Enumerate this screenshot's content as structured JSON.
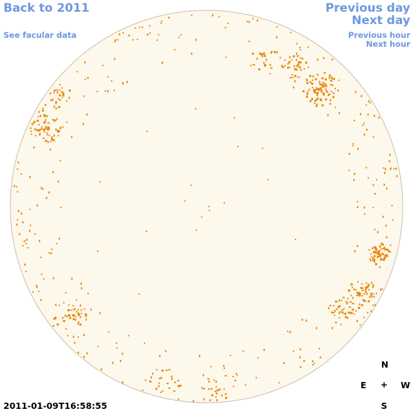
{
  "nav": {
    "back": "Back to 2011",
    "facular": "See facular data",
    "previous_day": "Previous day",
    "next_day": "Next day",
    "previous_hour": "Previous hour",
    "next_hour": "Next hour"
  },
  "timestamp": "2011-01-09T16:58:55",
  "compass": {
    "north": "N",
    "east": "E",
    "center": "+",
    "west": "W",
    "south": "S"
  },
  "colors": {
    "link": "#6f98de",
    "disk_fill": "#fdf8ec",
    "disk_edge": "#c8bca8",
    "facula": "#e8880c"
  }
}
